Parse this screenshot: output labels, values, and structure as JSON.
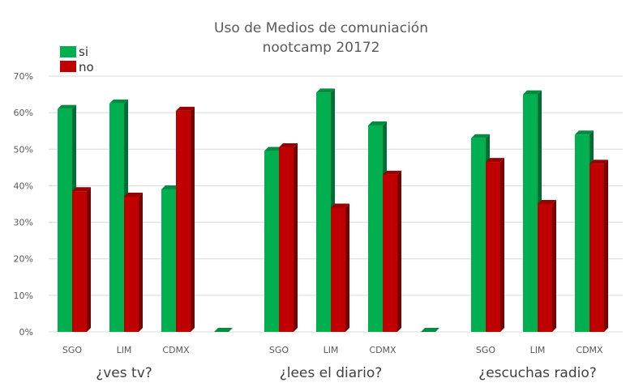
{
  "chart_data": {
    "type": "bar",
    "title": [
      "Uso de Medios de comuniación",
      "nootcamp 20172"
    ],
    "groups": [
      {
        "label": "¿ves tv?",
        "categories": [
          "SGO",
          "LIM",
          "CDMX"
        ]
      },
      {
        "label": "¿lees el diario?",
        "categories": [
          "SGO",
          "LIM",
          "CDMX"
        ]
      },
      {
        "label": "¿escuchas radio?",
        "categories": [
          "SGO",
          "LIM",
          "CDMX"
        ]
      }
    ],
    "series": [
      {
        "name": "si",
        "color": "#00b050",
        "values": [
          [
            61,
            62.5,
            39
          ],
          [
            49.5,
            65.5,
            56.5
          ],
          [
            53,
            65,
            54
          ]
        ]
      },
      {
        "name": "no",
        "color": "#c00000",
        "values": [
          [
            38.5,
            37,
            60.5
          ],
          [
            50.5,
            34,
            43
          ],
          [
            46.5,
            35,
            46
          ]
        ]
      }
    ],
    "separator_values": [
      0,
      0
    ],
    "yticks": [
      "0%",
      "10%",
      "20%",
      "30%",
      "40%",
      "50%",
      "60%",
      "70%"
    ],
    "ylim": [
      0,
      70
    ],
    "grid": true,
    "legend_position": "top-left"
  }
}
